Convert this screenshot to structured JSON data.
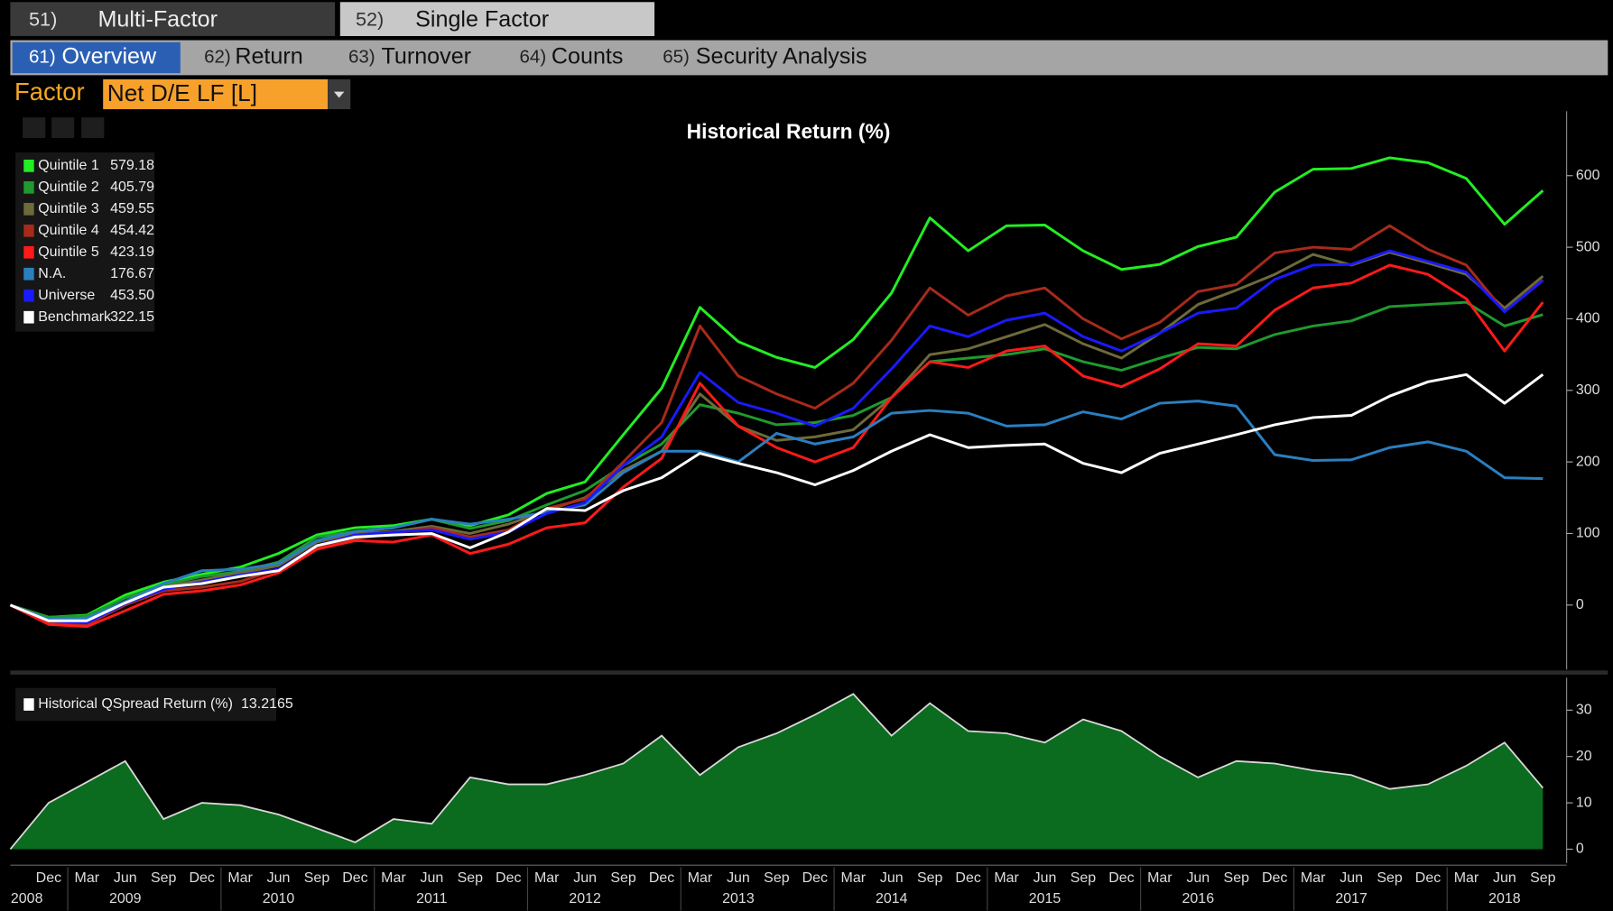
{
  "tabs": [
    {
      "number": "51)",
      "label": "Multi-Factor"
    },
    {
      "number": "52)",
      "label": "Single Factor"
    }
  ],
  "subtabs": [
    {
      "number": "61)",
      "label": "Overview"
    },
    {
      "number": "62)",
      "label": "Return"
    },
    {
      "number": "63)",
      "label": "Turnover"
    },
    {
      "number": "64)",
      "label": "Counts"
    },
    {
      "number": "65)",
      "label": "Security Analysis"
    }
  ],
  "factor": {
    "label": "Factor",
    "value": "Net D/E LF [L]"
  },
  "chart_data": [
    {
      "type": "line",
      "title": "Historical Return (%)",
      "ylim": [
        -90,
        690
      ],
      "yticks": [
        0,
        100,
        200,
        300,
        400,
        500,
        600
      ],
      "series": [
        {
          "name": "Quintile 1",
          "legend_value": "579.18",
          "color": "#22ee22",
          "values": [
            0,
            -17,
            -14,
            14,
            32,
            43,
            53,
            72,
            98,
            108,
            111,
            120,
            111,
            126,
            156,
            172,
            238,
            303,
            416,
            368,
            346,
            332,
            371,
            436,
            541,
            495,
            530,
            531,
            495,
            469,
            476,
            501,
            514,
            577,
            609,
            610,
            625,
            618,
            596,
            532,
            579.18
          ]
        },
        {
          "name": "Quintile 2",
          "legend_value": "405.79",
          "color": "#1f9a2f",
          "values": [
            0,
            -17,
            -15,
            10,
            28,
            40,
            47,
            60,
            95,
            103,
            108,
            120,
            107,
            118,
            140,
            160,
            195,
            225,
            280,
            268,
            252,
            255,
            265,
            290,
            340,
            345,
            350,
            358,
            340,
            328,
            345,
            360,
            358,
            378,
            390,
            397,
            417,
            420,
            423,
            390,
            405.79
          ]
        },
        {
          "name": "Quintile 3",
          "legend_value": "459.55",
          "color": "#6e6a3a",
          "values": [
            0,
            -20,
            -22,
            5,
            25,
            35,
            45,
            55,
            88,
            100,
            103,
            110,
            100,
            113,
            132,
            150,
            188,
            215,
            295,
            250,
            230,
            235,
            245,
            290,
            350,
            358,
            375,
            392,
            365,
            345,
            380,
            420,
            440,
            462,
            490,
            475,
            493,
            478,
            462,
            415,
            459.55
          ]
        },
        {
          "name": "Quintile 4",
          "legend_value": "454.42",
          "color": "#a82a1a",
          "values": [
            0,
            -25,
            -27,
            0,
            20,
            25,
            33,
            50,
            80,
            93,
            100,
            108,
            95,
            105,
            135,
            148,
            200,
            255,
            390,
            320,
            295,
            275,
            310,
            370,
            443,
            405,
            432,
            443,
            400,
            372,
            395,
            438,
            448,
            492,
            500,
            497,
            530,
            497,
            475,
            410,
            454.42
          ]
        },
        {
          "name": "Quintile 5",
          "legend_value": "423.19",
          "color": "#ff1a1a",
          "values": [
            0,
            -27,
            -30,
            -8,
            15,
            20,
            28,
            45,
            78,
            90,
            88,
            98,
            72,
            85,
            108,
            115,
            165,
            205,
            310,
            250,
            220,
            200,
            220,
            290,
            340,
            332,
            355,
            362,
            320,
            305,
            330,
            365,
            362,
            412,
            443,
            450,
            475,
            462,
            428,
            355,
            423.19
          ]
        },
        {
          "name": "N.A.",
          "legend_value": "176.67",
          "color": "#2a7fc0",
          "values": [
            0,
            -20,
            -18,
            5,
            30,
            48,
            50,
            58,
            90,
            103,
            108,
            120,
            113,
            120,
            130,
            140,
            185,
            215,
            215,
            200,
            240,
            225,
            235,
            268,
            272,
            268,
            250,
            252,
            270,
            260,
            282,
            285,
            278,
            210,
            202,
            203,
            220,
            228,
            215,
            178,
            176.67
          ]
        },
        {
          "name": "Universe",
          "legend_value": "453.50",
          "color": "#1a1aff",
          "values": [
            0,
            -22,
            -25,
            2,
            22,
            32,
            42,
            50,
            83,
            98,
            102,
            105,
            92,
            102,
            128,
            143,
            195,
            235,
            325,
            283,
            268,
            250,
            275,
            330,
            390,
            375,
            398,
            408,
            375,
            355,
            380,
            408,
            415,
            455,
            475,
            476,
            495,
            480,
            465,
            410,
            453.5
          ]
        },
        {
          "name": "Benchmark",
          "legend_value": "322.15",
          "color": "#ffffff",
          "values": [
            0,
            -22,
            -22,
            3,
            25,
            30,
            40,
            48,
            83,
            95,
            98,
            100,
            80,
            102,
            135,
            132,
            160,
            178,
            212,
            198,
            185,
            168,
            188,
            215,
            238,
            220,
            223,
            225,
            198,
            185,
            212,
            225,
            238,
            252,
            262,
            265,
            292,
            312,
            322,
            282,
            322.15
          ]
        }
      ]
    },
    {
      "type": "area",
      "categories": [
        null,
        "Dec",
        "Mar",
        "Jun",
        "Sep",
        "Dec",
        "Mar",
        "Jun",
        "Sep",
        "Dec",
        "Mar",
        "Jun",
        "Sep",
        "Dec",
        "Mar",
        "Jun",
        "Sep",
        "Dec",
        "Mar",
        "Jun",
        "Sep",
        "Dec",
        "Mar",
        "Jun",
        "Sep",
        "Dec",
        "Mar",
        "Jun",
        "Sep",
        "Dec",
        "Mar",
        "Jun",
        "Sep",
        "Dec",
        "Mar",
        "Jun",
        "Sep",
        "Dec",
        "Mar",
        "Jun",
        "Sep"
      ],
      "year_labels": [
        "2008",
        "2009",
        "2010",
        "2011",
        "2012",
        "2013",
        "2014",
        "2015",
        "2016",
        "2017",
        "2018"
      ],
      "ylim": [
        -3,
        37
      ],
      "yticks": [
        0,
        10,
        20,
        30
      ],
      "series": [
        {
          "name": "Historical QSpread Return (%)",
          "legend_value": "13.2165",
          "color": "#0b6b1e",
          "values": [
            0,
            10,
            14.5,
            19,
            6.5,
            10,
            9.5,
            7.5,
            4.5,
            1.5,
            6.5,
            5.5,
            15.5,
            14,
            14,
            16,
            18.5,
            24.5,
            16,
            22,
            25,
            29,
            33.5,
            24.5,
            31.5,
            25.5,
            25,
            23,
            28,
            25.5,
            20,
            15.5,
            19,
            18.5,
            17,
            16,
            13,
            14,
            18,
            23,
            13.2165
          ]
        }
      ]
    }
  ]
}
